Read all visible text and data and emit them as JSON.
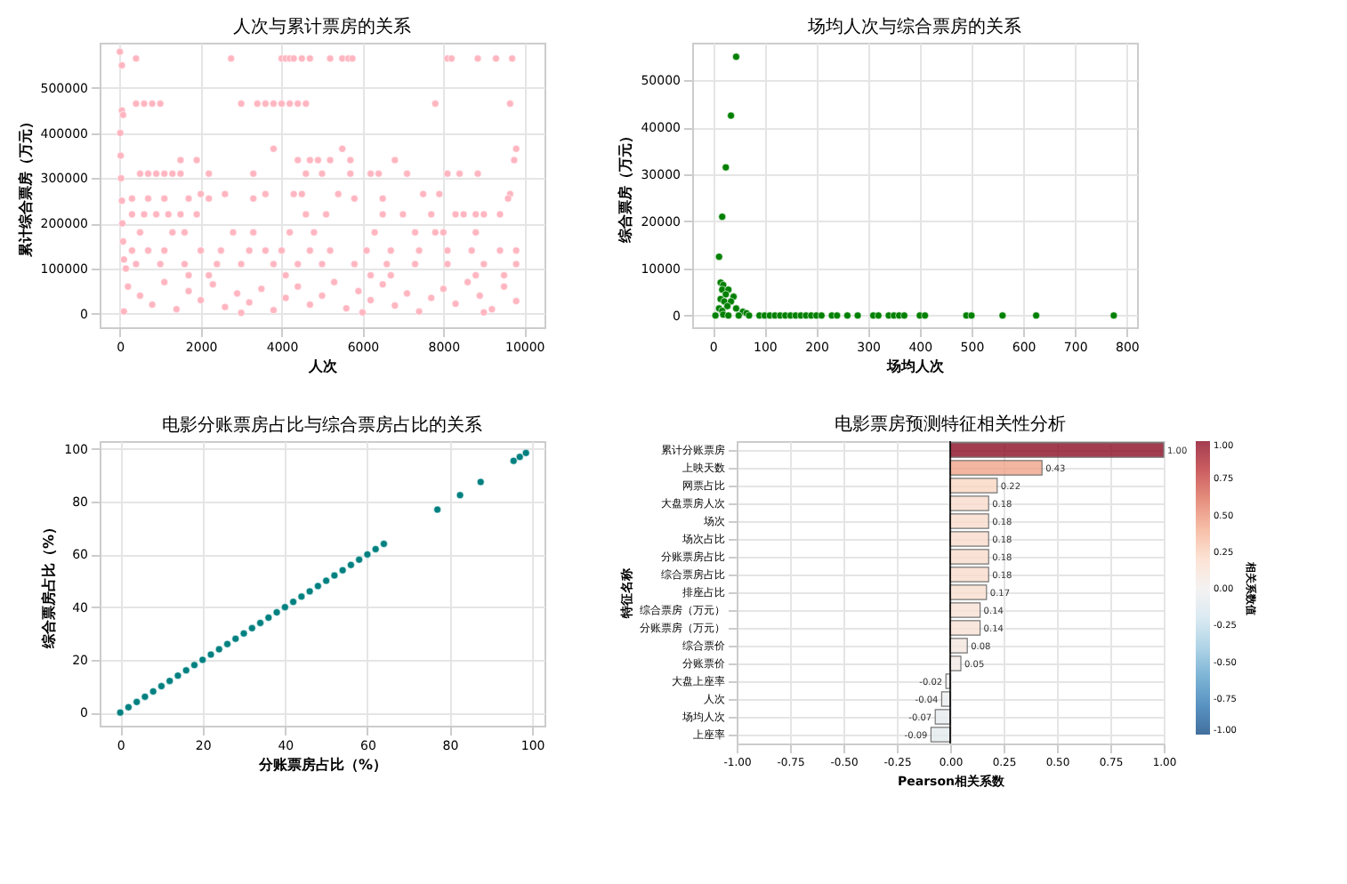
{
  "chart_data": [
    {
      "type": "scatter",
      "title": "人次与累计票房的关系",
      "xlabel": "人次",
      "ylabel": "累计综合票房（万元）",
      "xlim": [
        -500,
        10500
      ],
      "ylim": [
        -30000,
        600000
      ],
      "xticks": [
        0,
        2000,
        4000,
        6000,
        8000,
        10000
      ],
      "yticks": [
        0,
        100000,
        200000,
        300000,
        400000,
        500000
      ],
      "grid": true,
      "marker": "circle",
      "x": [
        0,
        50,
        400,
        2750,
        4000,
        4100,
        4200,
        4300,
        4500,
        4700,
        5200,
        5500,
        5650,
        5750,
        8100,
        8200,
        8850,
        9300,
        9700,
        50,
        80,
        400,
        600,
        800,
        1000,
        3000,
        3400,
        3600,
        3800,
        4000,
        4200,
        4400,
        4600,
        7800,
        9650,
        10,
        3800,
        5500,
        9800,
        20,
        1500,
        1900,
        4400,
        4700,
        4900,
        5200,
        5700,
        6800,
        9750,
        30,
        500,
        700,
        900,
        1100,
        1300,
        1500,
        2200,
        3300,
        4600,
        5000,
        5700,
        6200,
        6400,
        7100,
        8100,
        8400,
        8850,
        2000,
        2600,
        3600,
        4300,
        4500,
        5400,
        7500,
        7900,
        9650,
        50,
        300,
        700,
        1100,
        1700,
        2200,
        3300,
        5800,
        6500,
        9600,
        300,
        600,
        900,
        1200,
        1500,
        1900,
        4600,
        5100,
        6500,
        7000,
        7700,
        8300,
        8500,
        8800,
        9000,
        9400,
        60,
        80,
        500,
        1300,
        1600,
        2800,
        3300,
        4200,
        4800,
        6300,
        7300,
        7800,
        8000,
        8800,
        100,
        300,
        700,
        1100,
        2000,
        2500,
        3200,
        3600,
        4000,
        4700,
        5200,
        6100,
        6700,
        7400,
        8100,
        8700,
        9400,
        9800,
        150,
        400,
        1000,
        1600,
        2400,
        3000,
        3800,
        4400,
        5000,
        5800,
        6600,
        7300,
        8100,
        9000,
        9800,
        1700,
        2200,
        4100,
        6200,
        6700,
        8800,
        9500,
        200,
        500,
        800,
        1100,
        1400,
        1700,
        2000,
        2300,
        2600,
        2900,
        3200,
        3500,
        3800,
        4100,
        4400,
        4700,
        5000,
        5300,
        5600,
        5900,
        6200,
        6500,
        6800,
        7100,
        7400,
        7700,
        8000,
        8300,
        8600,
        8900,
        9200,
        9500,
        9800,
        100,
        3000,
        6000,
        9000
      ],
      "series": [
        {
          "color": "#ffb6c1",
          "values": [
            580000,
            550000,
            565000,
            565000,
            565000,
            565000,
            565000,
            565000,
            565000,
            565000,
            565000,
            565000,
            565000,
            565000,
            565000,
            565000,
            565000,
            565000,
            565000,
            450000,
            440000,
            465000,
            465000,
            465000,
            465000,
            465000,
            465000,
            465000,
            465000,
            465000,
            465000,
            465000,
            465000,
            465000,
            465000,
            400000,
            365000,
            365000,
            365000,
            350000,
            340000,
            340000,
            340000,
            340000,
            340000,
            340000,
            340000,
            340000,
            340000,
            300000,
            310000,
            310000,
            310000,
            310000,
            310000,
            310000,
            310000,
            310000,
            310000,
            310000,
            310000,
            310000,
            310000,
            310000,
            310000,
            310000,
            310000,
            265000,
            265000,
            265000,
            265000,
            265000,
            265000,
            265000,
            265000,
            265000,
            250000,
            255000,
            255000,
            255000,
            255000,
            255000,
            255000,
            255000,
            255000,
            255000,
            220000,
            220000,
            220000,
            220000,
            220000,
            220000,
            220000,
            220000,
            220000,
            220000,
            220000,
            220000,
            220000,
            220000,
            220000,
            220000,
            200000,
            160000,
            180000,
            180000,
            180000,
            180000,
            180000,
            180000,
            180000,
            180000,
            180000,
            180000,
            180000,
            180000,
            120000,
            140000,
            140000,
            140000,
            140000,
            140000,
            140000,
            140000,
            140000,
            140000,
            140000,
            140000,
            140000,
            140000,
            140000,
            140000,
            140000,
            140000,
            100000,
            110000,
            110000,
            110000,
            110000,
            110000,
            110000,
            110000,
            110000,
            110000,
            110000,
            110000,
            110000,
            110000,
            110000,
            85000,
            85000,
            85000,
            85000,
            85000,
            85000,
            85000,
            60000,
            40000,
            20000,
            70000,
            10000,
            50000,
            30000,
            65000,
            15000,
            45000,
            25000,
            55000,
            8000,
            35000,
            60000,
            20000,
            40000,
            70000,
            12000,
            50000,
            30000,
            65000,
            18000,
            45000,
            5000,
            35000,
            55000,
            22000,
            70000,
            40000,
            10000,
            60000,
            28000,
            5000,
            2000,
            3000,
            3000
          ]
        }
      ]
    },
    {
      "type": "scatter",
      "title": "场均人次与综合票房的关系",
      "xlabel": "场均人次",
      "ylabel": "综合票房（万元）",
      "xlim": [
        -40,
        820
      ],
      "ylim": [
        -2500,
        58000
      ],
      "xticks": [
        0,
        100,
        200,
        300,
        400,
        500,
        600,
        700,
        800
      ],
      "yticks": [
        0,
        10000,
        20000,
        30000,
        40000,
        50000
      ],
      "grid": true,
      "marker": "circle",
      "x": [
        45,
        35,
        25,
        18,
        12,
        15,
        20,
        18,
        30,
        25,
        40,
        15,
        22,
        35,
        28,
        45,
        12,
        18,
        58,
        65,
        20,
        5,
        30,
        50,
        70,
        90,
        100,
        110,
        120,
        130,
        140,
        150,
        160,
        170,
        180,
        190,
        200,
        210,
        230,
        240,
        260,
        280,
        310,
        320,
        340,
        350,
        360,
        370,
        400,
        410,
        490,
        500,
        560,
        625,
        775
      ],
      "series": [
        {
          "color": "#008000",
          "values": [
            55000,
            42500,
            31500,
            21000,
            12500,
            7000,
            6500,
            5500,
            5500,
            4500,
            4000,
            3500,
            3000,
            3000,
            2000,
            1500,
            1500,
            1000,
            800,
            500,
            200,
            0,
            0,
            0,
            0,
            0,
            0,
            0,
            0,
            0,
            0,
            0,
            0,
            0,
            0,
            0,
            0,
            0,
            0,
            0,
            0,
            0,
            0,
            0,
            0,
            0,
            0,
            0,
            0,
            0,
            0,
            0,
            0,
            0,
            0
          ]
        }
      ]
    },
    {
      "type": "scatter",
      "title": "电影分账票房占比与综合票房占比的关系",
      "xlabel": "分账票房占比（%）",
      "ylabel": "综合票房占比（%）",
      "xlim": [
        -5,
        103
      ],
      "ylim": [
        -5,
        103
      ],
      "xticks": [
        0,
        20,
        40,
        60,
        80,
        100
      ],
      "yticks": [
        0,
        20,
        40,
        60,
        80,
        100
      ],
      "grid": true,
      "marker": "circle",
      "x": [
        0,
        2,
        4,
        6,
        8,
        10,
        12,
        14,
        16,
        18,
        20,
        22,
        24,
        26,
        28,
        30,
        32,
        34,
        36,
        38,
        40,
        42,
        44,
        46,
        48,
        50,
        52,
        54,
        56,
        58,
        60,
        62,
        64,
        77,
        82.5,
        87.5,
        95.5,
        97,
        98.5
      ],
      "series": [
        {
          "color": "#008080",
          "values": [
            0,
            2,
            4,
            6,
            8,
            10,
            12,
            14,
            16,
            18,
            20,
            22,
            24,
            26,
            28,
            30,
            32,
            34,
            36,
            38,
            40,
            42,
            44,
            46,
            48,
            50,
            52,
            54,
            56,
            58,
            60,
            62,
            64,
            77,
            82.5,
            87.5,
            95.5,
            97,
            98.5
          ]
        }
      ]
    },
    {
      "type": "bar",
      "orientation": "horizontal",
      "title": "电影票房预测特征相关性分析",
      "xlabel": "Pearson相关系数",
      "ylabel": "特征名称",
      "clabel": "相关系数值",
      "grid": true,
      "categories": [
        "累计分账票房",
        "上映天数",
        "网票占比",
        "大盘票房人次",
        "场次",
        "场次占比",
        "分账票房占比",
        "综合票房占比",
        "排座占比",
        "综合票房（万元）",
        "分账票房（万元）",
        "综合票价",
        "分账票价",
        "大盘上座率",
        "人次",
        "场均人次",
        "上座率"
      ],
      "values": [
        1.0,
        0.43,
        0.22,
        0.18,
        0.18,
        0.18,
        0.18,
        0.18,
        0.17,
        0.14,
        0.14,
        0.08,
        0.05,
        -0.02,
        -0.04,
        -0.07,
        -0.09
      ],
      "value_labels": [
        "1.00",
        "0.43",
        "0.22",
        "0.18",
        "0.18",
        "0.18",
        "0.18",
        "0.18",
        "0.17",
        "0.14",
        "0.14",
        "0.08",
        "0.05",
        "-0.02",
        "-0.04",
        "-0.07",
        "-0.09"
      ],
      "xlim": [
        -1,
        1
      ],
      "xticks": [
        {
          "value": -1,
          "label": "-1.00"
        },
        {
          "value": -0.75,
          "label": "-0.75"
        },
        {
          "value": -0.5,
          "label": "-0.50"
        },
        {
          "value": -0.25,
          "label": "-0.25"
        },
        {
          "value": 0,
          "label": "0.00"
        },
        {
          "value": 0.25,
          "label": "0.25"
        },
        {
          "value": 0.5,
          "label": "0.50"
        },
        {
          "value": 0.75,
          "label": "0.75"
        },
        {
          "value": 1,
          "label": "1.00"
        }
      ],
      "clim": [
        -1,
        1
      ],
      "cticks": [
        {
          "value": -1,
          "label": "-1.00"
        },
        {
          "value": -0.75,
          "label": "-0.75"
        },
        {
          "value": -0.5,
          "label": "-0.50"
        },
        {
          "value": -0.25,
          "label": "-0.25"
        },
        {
          "value": 0,
          "label": "0.00"
        },
        {
          "value": 0.25,
          "label": "0.25"
        },
        {
          "value": 0.5,
          "label": "0.50"
        },
        {
          "value": 0.75,
          "label": "0.75"
        },
        {
          "value": 1,
          "label": "1.00"
        }
      ],
      "ref_lines": [
        {
          "axis": "x",
          "value": 0,
          "color": "#000000"
        }
      ]
    }
  ]
}
